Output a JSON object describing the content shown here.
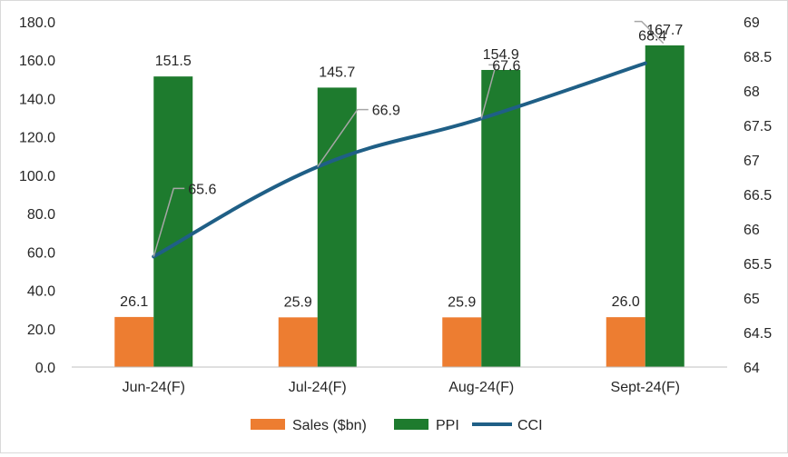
{
  "chart_data": {
    "type": "bar",
    "categories": [
      "Jun-24(F)",
      "Jul-24(F)",
      "Aug-24(F)",
      "Sept-24(F)"
    ],
    "series": [
      {
        "name": "Sales ($bn)",
        "type": "bar",
        "axis": "left",
        "color": "#ED7D31",
        "values": [
          26.1,
          25.9,
          25.9,
          26.0
        ],
        "labels": [
          "26.1",
          "25.9",
          "25.9",
          "26.0"
        ]
      },
      {
        "name": "PPI",
        "type": "bar",
        "axis": "left",
        "color": "#1E7B2E",
        "values": [
          151.5,
          145.7,
          154.9,
          167.7
        ],
        "labels": [
          "151.5",
          "145.7",
          "154.9",
          "167.7"
        ]
      },
      {
        "name": "CCI",
        "type": "line",
        "axis": "right",
        "color": "#1F5F86",
        "values": [
          65.6,
          66.9,
          67.6,
          68.4
        ],
        "labels": [
          "65.6",
          "66.9",
          "67.6",
          "68.4"
        ]
      }
    ],
    "y_left": {
      "min": 0,
      "max": 180,
      "step": 20,
      "tick_labels": [
        "0.0",
        "20.0",
        "40.0",
        "60.0",
        "80.0",
        "100.0",
        "120.0",
        "140.0",
        "160.0",
        "180.0"
      ]
    },
    "y_right": {
      "min": 64,
      "max": 69,
      "step": 0.5,
      "tick_labels": [
        "64",
        "64.5",
        "65",
        "65.5",
        "66",
        "66.5",
        "67",
        "67.5",
        "68",
        "68.5",
        "69"
      ]
    },
    "grid": false,
    "legend": "bottom"
  }
}
